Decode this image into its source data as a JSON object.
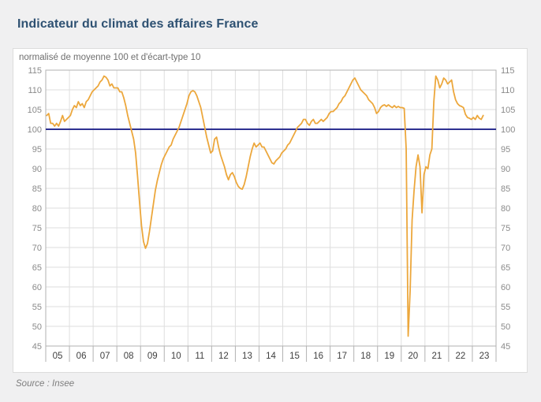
{
  "header": {
    "title": "Indicateur du climat des affaires France"
  },
  "footer": {
    "source": "Source : Insee"
  },
  "colors": {
    "title": "#2e5172",
    "series_line": "#eca73c",
    "reference_line": "#2e3191",
    "grid": "#dedede",
    "frame": "#b2b2b2",
    "y_label": "#8a8a8a",
    "x_label": "#3f3f3f",
    "card_background": "#ffffff",
    "page_background": "#f0f0f1"
  },
  "chart_data": {
    "type": "line",
    "title": "Indicateur du climat des affaires France",
    "subtitle": "normalisé de moyenne 100 et d'écart-type 10",
    "source": "Source : Insee",
    "grid": true,
    "legend": "none",
    "ylim": [
      45,
      115
    ],
    "y_tick_step": 5,
    "y_axis_sides": "both",
    "x_tick_labels": [
      "05",
      "06",
      "07",
      "08",
      "09",
      "10",
      "11",
      "12",
      "13",
      "14",
      "15",
      "16",
      "17",
      "18",
      "19",
      "20",
      "21",
      "22",
      "23"
    ],
    "x_start": "2005-01",
    "x_end": "2023-06",
    "frequency": "monthly",
    "reference_line": {
      "value": 100,
      "color": "#2e3191"
    },
    "series": [
      {
        "name": "Climat des affaires France (normalisé moyenne 100, écart-type 10)",
        "color": "#eca73c",
        "values": [
          103.5,
          104,
          101.5,
          101.5,
          100.8,
          101.5,
          100.8,
          102,
          103.5,
          102,
          102.5,
          103,
          103.5,
          105,
          106,
          105.5,
          107,
          106,
          106.5,
          105.5,
          107,
          107.5,
          108.5,
          109.5,
          110,
          110.5,
          111,
          112,
          112.5,
          113.5,
          113.2,
          112.5,
          111,
          111.5,
          110.5,
          110.5,
          110.5,
          109.5,
          109.5,
          108,
          106,
          103.5,
          101.5,
          99.5,
          97.5,
          94,
          88,
          81.5,
          75.5,
          71.5,
          69.8,
          71,
          74,
          77.5,
          81,
          84.5,
          87,
          89,
          91,
          92.5,
          93.5,
          94.5,
          95.5,
          96,
          97.5,
          98.5,
          99.5,
          100.5,
          102,
          103.5,
          105,
          106.5,
          108.5,
          109.5,
          109.8,
          109.5,
          108.5,
          107,
          105.5,
          103,
          100.5,
          98,
          96,
          94,
          94.5,
          97.5,
          98,
          95.5,
          93.5,
          92,
          90.5,
          88.5,
          87.2,
          88.5,
          89,
          88,
          86.5,
          85.5,
          85,
          84.8,
          86,
          88,
          90.5,
          93,
          95,
          96.5,
          95.5,
          96,
          96.5,
          95.5,
          95.5,
          94.5,
          93.5,
          92.5,
          91.5,
          91.2,
          92,
          92.5,
          93,
          94,
          94.5,
          95,
          96,
          96.5,
          97.5,
          98.5,
          99.5,
          100.5,
          101,
          101.5,
          102.5,
          102.5,
          101.5,
          101,
          102,
          102.5,
          101.5,
          101.5,
          102,
          102.5,
          102,
          102.5,
          103,
          104,
          104.5,
          104.5,
          105,
          105.5,
          106.5,
          107,
          108,
          108.5,
          109.5,
          110.5,
          111.5,
          112.5,
          113,
          112,
          111,
          110,
          109.5,
          109,
          108.5,
          107.5,
          107,
          106.5,
          105.5,
          104,
          104.5,
          105.5,
          106,
          106.2,
          105.8,
          106.2,
          105.8,
          105.5,
          106,
          105.5,
          105.8,
          105.5,
          105.5,
          105.3,
          95,
          47.5,
          59,
          77,
          84.5,
          90.5,
          93.5,
          90.5,
          78.8,
          88.5,
          90.5,
          90,
          93.5,
          95,
          107,
          113.5,
          112.5,
          110.5,
          111.5,
          113,
          112.5,
          111.5,
          112,
          112.5,
          109.5,
          107.5,
          106.5,
          106,
          105.8,
          105.5,
          103.8,
          103,
          102.8,
          102.5,
          103,
          102.5,
          103.5,
          102.8,
          102.5,
          103.5
        ]
      }
    ]
  }
}
